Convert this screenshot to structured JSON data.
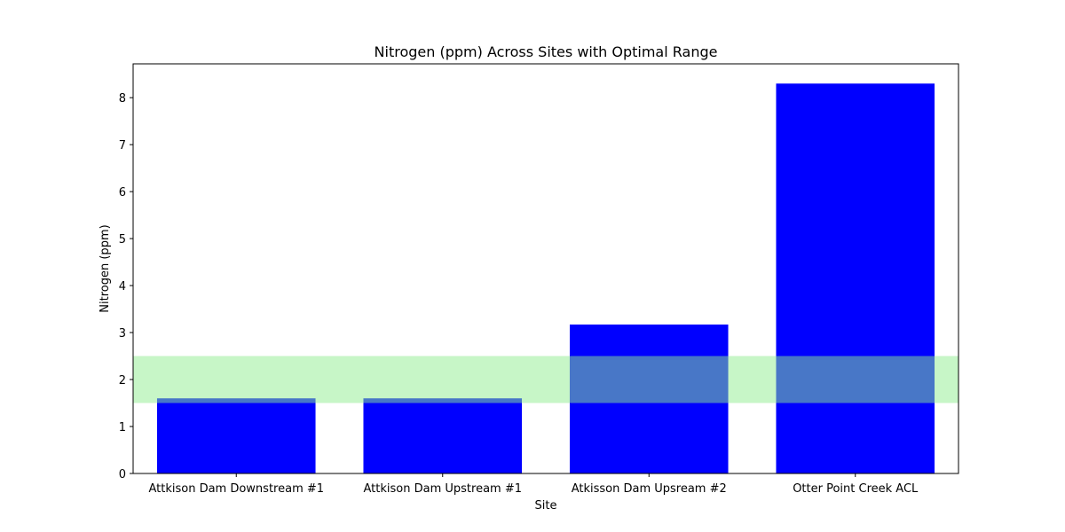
{
  "chart_data": {
    "type": "bar",
    "title": "Nitrogen (ppm) Across Sites with Optimal Range",
    "xlabel": "Site",
    "ylabel": "Nitrogen (ppm)",
    "categories": [
      "Attkison Dam Downstream #1",
      "Attkison Dam Upstream #1",
      "Atkisson Dam Upsream #2",
      "Otter Point Creek ACL"
    ],
    "values": [
      1.6,
      1.6,
      3.17,
      8.3
    ],
    "ylim": [
      0,
      8.72
    ],
    "yticks": [
      "0",
      "1",
      "2",
      "3",
      "4",
      "5",
      "6",
      "7",
      "8"
    ],
    "optimal_range": [
      1.5,
      2.5
    ],
    "grid": false,
    "colors": {
      "bar": "#0000ff",
      "optimal_range_fill": "#90ee90",
      "optimal_range_alpha": 0.5
    }
  }
}
